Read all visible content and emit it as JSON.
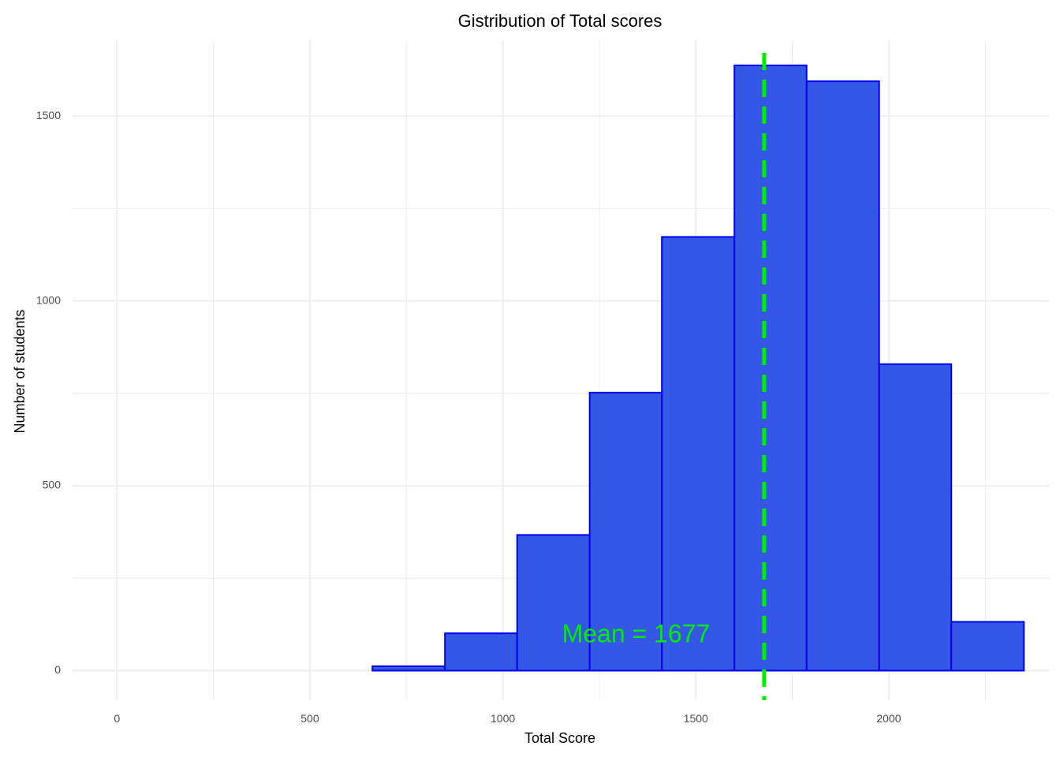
{
  "chart_data": {
    "type": "bar",
    "title": "Gistribution of Total scores",
    "xlabel": "Total Score",
    "ylabel": "Number of students",
    "xlim": [
      -115,
      2415
    ],
    "ylim": [
      -80,
      1705
    ],
    "x_ticks": [
      0,
      500,
      1000,
      1500,
      2000
    ],
    "y_ticks": [
      0,
      500,
      1000,
      1500
    ],
    "grid": true,
    "bins": [
      {
        "x0": 662,
        "x1": 850,
        "count": 12
      },
      {
        "x0": 850,
        "x1": 1037,
        "count": 101
      },
      {
        "x0": 1037,
        "x1": 1225,
        "count": 367
      },
      {
        "x0": 1225,
        "x1": 1412,
        "count": 752
      },
      {
        "x0": 1412,
        "x1": 1600,
        "count": 1173
      },
      {
        "x0": 1600,
        "x1": 1787,
        "count": 1637
      },
      {
        "x0": 1787,
        "x1": 1975,
        "count": 1594
      },
      {
        "x0": 1975,
        "x1": 2162,
        "count": 829
      },
      {
        "x0": 2162,
        "x1": 2350,
        "count": 132
      },
      {
        "x0": 2350,
        "x1": 2415,
        "count": 0
      }
    ],
    "mean_line": {
      "x": 1677
    },
    "annotation": {
      "text": "Mean = 1677",
      "x": 1345,
      "y": 95
    },
    "colors": {
      "bar_fill": "#3457e6",
      "bar_stroke": "#0000ee",
      "mean_line": "#00ee00",
      "annotation": "#00ee00",
      "grid": "#ebebeb"
    }
  }
}
